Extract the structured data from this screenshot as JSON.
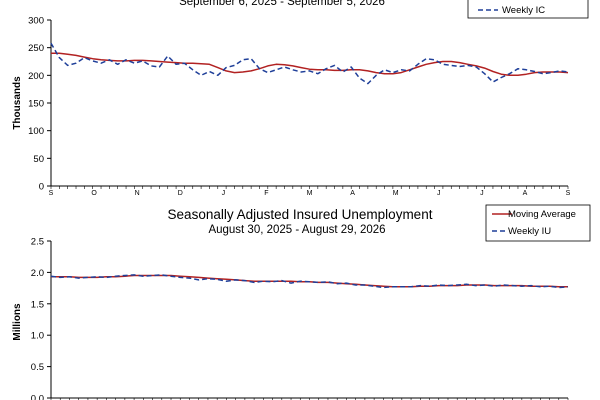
{
  "chart_data": [
    {
      "type": "line",
      "title": "",
      "date_range": "September 6, 2025 - September 5, 2026",
      "ylabel": "Thousands",
      "ylim": [
        0,
        300
      ],
      "yticks": [
        0,
        50,
        100,
        150,
        200,
        250,
        300
      ],
      "month_labels": [
        "S",
        "O",
        "N",
        "D",
        "J",
        "F",
        "M",
        "A",
        "M",
        "J",
        "J",
        "A",
        "S"
      ],
      "grid": false,
      "legend": "top-right",
      "colors": {
        "moving_average": "#b22222",
        "weekly": "#1f3f99"
      },
      "series": [
        {
          "name": "",
          "style": "solid",
          "values": [
            240,
            240,
            238,
            236,
            233,
            230,
            228,
            227,
            226,
            226,
            227,
            227,
            226,
            225,
            224,
            223,
            222,
            222,
            221,
            220,
            214,
            208,
            205,
            206,
            208,
            212,
            217,
            220,
            219,
            217,
            214,
            211,
            210,
            210,
            209,
            209,
            210,
            210,
            208,
            205,
            203,
            203,
            205,
            210,
            215,
            220,
            223,
            225,
            225,
            223,
            220,
            217,
            213,
            207,
            202,
            200,
            200,
            202,
            205,
            206,
            206,
            206,
            205
          ]
        },
        {
          "name": "Weekly IC",
          "style": "dashed",
          "values": [
            258,
            232,
            218,
            222,
            232,
            226,
            222,
            228,
            220,
            228,
            222,
            226,
            217,
            215,
            235,
            220,
            222,
            210,
            200,
            207,
            200,
            214,
            218,
            228,
            230,
            212,
            205,
            210,
            215,
            210,
            206,
            208,
            203,
            212,
            218,
            206,
            215,
            195,
            185,
            200,
            210,
            205,
            210,
            208,
            220,
            230,
            228,
            220,
            218,
            216,
            218,
            215,
            203,
            188,
            196,
            203,
            212,
            210,
            207,
            203,
            205,
            208,
            206
          ]
        }
      ]
    },
    {
      "type": "line",
      "title": "Seasonally Adjusted Insured Unemployment",
      "date_range": "August 30, 2025 - August 29, 2026",
      "ylabel": "Millions",
      "ylim": [
        0,
        2.5
      ],
      "yticks": [
        "0.0",
        "0.5",
        "1.0",
        "1.5",
        "2.0",
        "2.5"
      ],
      "grid": false,
      "legend": "top-right",
      "colors": {
        "moving_average": "#b22222",
        "weekly": "#1f3f99"
      },
      "series": [
        {
          "name": "Moving Average",
          "style": "solid",
          "values": [
            1.93,
            1.93,
            1.93,
            1.92,
            1.92,
            1.92,
            1.93,
            1.93,
            1.94,
            1.95,
            1.95,
            1.95,
            1.95,
            1.95,
            1.94,
            1.93,
            1.92,
            1.91,
            1.9,
            1.89,
            1.88,
            1.87,
            1.86,
            1.86,
            1.86,
            1.86,
            1.86,
            1.85,
            1.85,
            1.84,
            1.84,
            1.83,
            1.82,
            1.81,
            1.8,
            1.79,
            1.78,
            1.77,
            1.77,
            1.77,
            1.78,
            1.78,
            1.79,
            1.79,
            1.79,
            1.8,
            1.8,
            1.8,
            1.79,
            1.79,
            1.79,
            1.79,
            1.78,
            1.78,
            1.78,
            1.77,
            1.77
          ]
        },
        {
          "name": "Weekly IU",
          "style": "dashed",
          "values": [
            1.94,
            1.92,
            1.93,
            1.91,
            1.92,
            1.93,
            1.92,
            1.94,
            1.95,
            1.96,
            1.94,
            1.95,
            1.96,
            1.94,
            1.92,
            1.91,
            1.88,
            1.9,
            1.89,
            1.86,
            1.88,
            1.87,
            1.84,
            1.86,
            1.85,
            1.87,
            1.83,
            1.86,
            1.85,
            1.84,
            1.85,
            1.82,
            1.83,
            1.8,
            1.8,
            1.78,
            1.76,
            1.77,
            1.77,
            1.77,
            1.79,
            1.78,
            1.8,
            1.79,
            1.8,
            1.81,
            1.79,
            1.8,
            1.78,
            1.8,
            1.79,
            1.78,
            1.79,
            1.77,
            1.78,
            1.76,
            1.77
          ]
        }
      ]
    }
  ]
}
